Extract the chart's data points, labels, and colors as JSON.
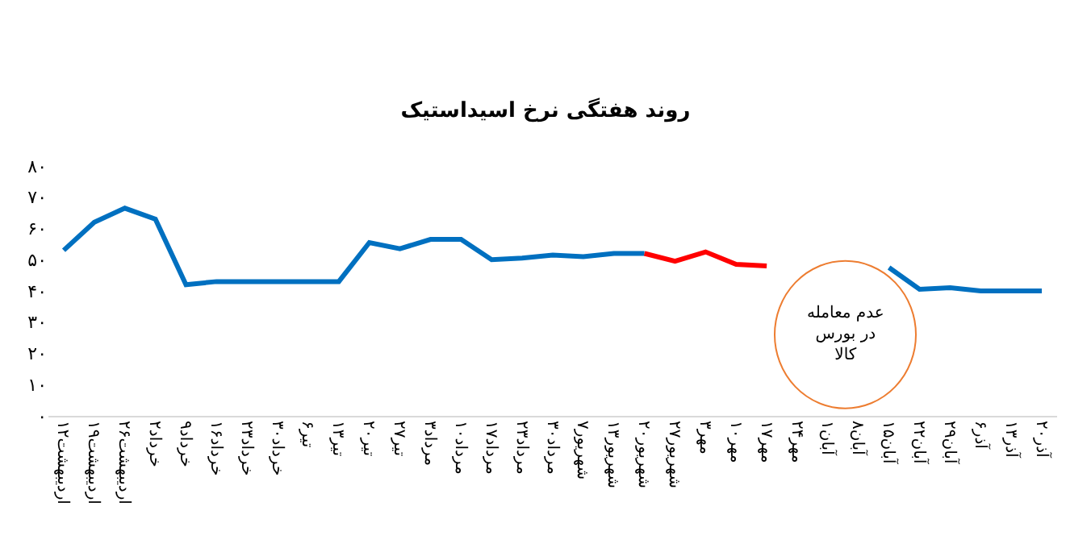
{
  "chart_data": {
    "type": "line",
    "title": "روند هفتگی نرخ اسیداستیک",
    "categories": [
      "۱۲اردیبهشت",
      "۱۹اردیبهشت",
      "۲۶اردیبهشت",
      "۲خرداد",
      "۹خرداد",
      "۱۶خرداد",
      "۲۳خرداد",
      "۳۰خرداد",
      "۶تیر",
      "۱۳تیر",
      "۲۰تیر",
      "۲۷تیر",
      "۳مرداد",
      "۱۰مرداد",
      "۱۷مرداد",
      "۲۳مرداد",
      "۳۰مرداد",
      "۷شهریور",
      "۱۳شهریور",
      "۲۰شهریور",
      "۲۷شهریور",
      "۳مهر",
      "۱۰مهر",
      "۱۷مهر",
      "۲۴مهر",
      "۱آبان",
      "۸آبان",
      "۱۵آبان",
      "۲۲آبان",
      "۲۹آبان",
      "۶آذر",
      "۱۳آذر",
      "۲۰آذر"
    ],
    "series": [
      {
        "color": "#0070c0",
        "values": [
          53,
          62,
          66.5,
          63,
          42,
          43,
          43,
          43,
          43,
          43,
          55.5,
          53.5,
          56.5,
          56.5,
          50,
          50.5,
          51.5,
          51,
          52,
          52,
          null,
          null,
          null,
          null,
          null,
          null,
          null,
          47.5,
          40.5,
          41,
          40,
          40,
          40
        ]
      },
      {
        "color": "#ff0000",
        "values": [
          null,
          null,
          null,
          null,
          null,
          null,
          null,
          null,
          null,
          null,
          null,
          null,
          null,
          null,
          null,
          null,
          null,
          null,
          null,
          52,
          49.5,
          52.5,
          48.5,
          48,
          null,
          null,
          null,
          null,
          null,
          null,
          null,
          null,
          null
        ]
      }
    ],
    "ylim": [
      0,
      80
    ],
    "yticks": [
      {
        "value": 0,
        "label": "۰"
      },
      {
        "value": 10,
        "label": "۱۰"
      },
      {
        "value": 20,
        "label": "۲۰"
      },
      {
        "value": 30,
        "label": "۳۰"
      },
      {
        "value": 40,
        "label": "۴۰"
      },
      {
        "value": 50,
        "label": "۵۰"
      },
      {
        "value": 60,
        "label": "۶۰"
      },
      {
        "value": 70,
        "label": "۷۰"
      },
      {
        "value": 80,
        "label": "۸۰"
      }
    ],
    "grid": false,
    "marker": "none",
    "line_style": "solid",
    "annotations": [
      "عدم معامله\nدر بورس\nکالا"
    ]
  }
}
